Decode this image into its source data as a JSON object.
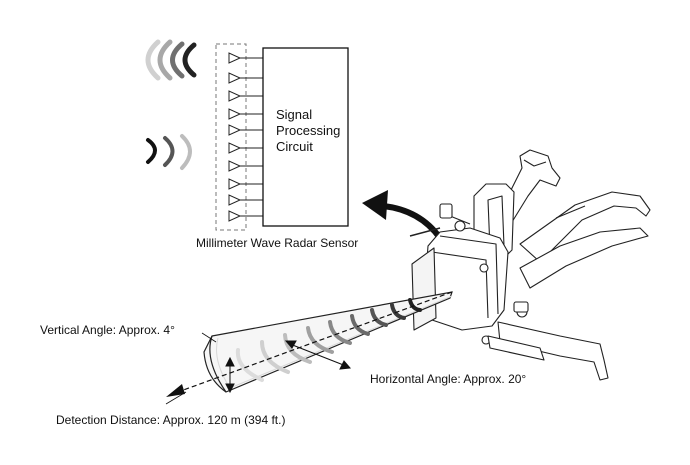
{
  "labels": {
    "circuit_line1": "Signal",
    "circuit_line2": "Processing",
    "circuit_line3": "Circuit",
    "sensor_caption": "Millimeter Wave Radar Sensor",
    "vertical_angle": "Vertical Angle: Approx. 4°",
    "horizontal_angle": "Horizontal Angle: Approx. 20°",
    "detection_distance": "Detection Distance: Approx. 120 m (394 ft.)"
  }
}
